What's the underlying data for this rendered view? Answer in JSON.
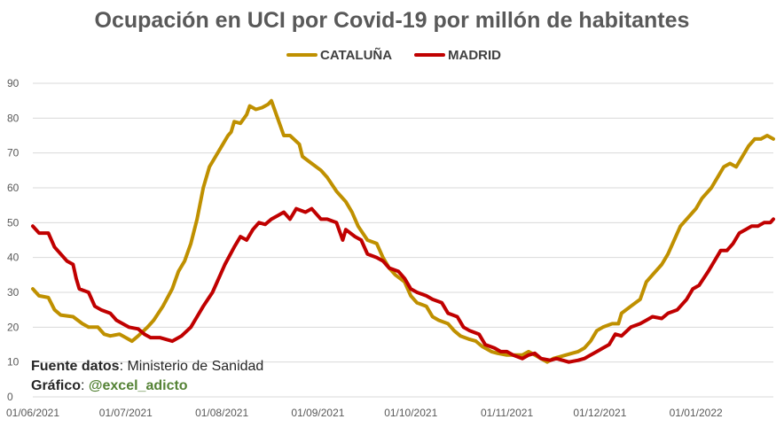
{
  "chart_data": {
    "type": "line",
    "title": "Ocupación en UCI por Covid-19 por millón de habitantes",
    "xlabel": "",
    "ylabel": "",
    "ylim": [
      0,
      90
    ],
    "yticks": [
      0,
      10,
      20,
      30,
      40,
      50,
      60,
      70,
      80,
      90
    ],
    "xlim": [
      "2021-06-01",
      "2022-01-18"
    ],
    "xticks": [
      "2021-06-01",
      "2021-07-01",
      "2021-08-01",
      "2021-09-01",
      "2021-10-01",
      "2021-11-01",
      "2021-12-01",
      "2022-01-01"
    ],
    "xtick_labels": [
      "01/06/2021",
      "01/07/2021",
      "01/08/2021",
      "01/09/2021",
      "01/10/2021",
      "01/11/2021",
      "01/12/2021",
      "01/01/2022"
    ],
    "grid": true,
    "legend_position": "top-center",
    "series": [
      {
        "name": "CATALUÑA",
        "color": "#bf9000",
        "points": [
          [
            "2021-06-01",
            31
          ],
          [
            "2021-06-03",
            29
          ],
          [
            "2021-06-06",
            28.5
          ],
          [
            "2021-06-08",
            25
          ],
          [
            "2021-06-10",
            23.5
          ],
          [
            "2021-06-14",
            23
          ],
          [
            "2021-06-17",
            21
          ],
          [
            "2021-06-19",
            20
          ],
          [
            "2021-06-22",
            20
          ],
          [
            "2021-06-24",
            18
          ],
          [
            "2021-06-26",
            17.5
          ],
          [
            "2021-06-29",
            18
          ],
          [
            "2021-07-01",
            17
          ],
          [
            "2021-07-03",
            16
          ],
          [
            "2021-07-05",
            17.5
          ],
          [
            "2021-07-08",
            20
          ],
          [
            "2021-07-10",
            22
          ],
          [
            "2021-07-13",
            26
          ],
          [
            "2021-07-16",
            31
          ],
          [
            "2021-07-18",
            36
          ],
          [
            "2021-07-20",
            39
          ],
          [
            "2021-07-22",
            44
          ],
          [
            "2021-07-24",
            51
          ],
          [
            "2021-07-26",
            60
          ],
          [
            "2021-07-28",
            66
          ],
          [
            "2021-07-30",
            69
          ],
          [
            "2021-08-01",
            72
          ],
          [
            "2021-08-03",
            75
          ],
          [
            "2021-08-04",
            76
          ],
          [
            "2021-08-05",
            79
          ],
          [
            "2021-08-07",
            78.5
          ],
          [
            "2021-08-09",
            81
          ],
          [
            "2021-08-10",
            83.5
          ],
          [
            "2021-08-12",
            82.5
          ],
          [
            "2021-08-14",
            83
          ],
          [
            "2021-08-16",
            84
          ],
          [
            "2021-08-17",
            85
          ],
          [
            "2021-08-19",
            80
          ],
          [
            "2021-08-21",
            75
          ],
          [
            "2021-08-23",
            75
          ],
          [
            "2021-08-26",
            72.5
          ],
          [
            "2021-08-27",
            69
          ],
          [
            "2021-08-30",
            67
          ],
          [
            "2021-09-02",
            65
          ],
          [
            "2021-09-04",
            63
          ],
          [
            "2021-09-07",
            59
          ],
          [
            "2021-09-10",
            56
          ],
          [
            "2021-09-12",
            53
          ],
          [
            "2021-09-14",
            49
          ],
          [
            "2021-09-17",
            45
          ],
          [
            "2021-09-20",
            44
          ],
          [
            "2021-09-22",
            40
          ],
          [
            "2021-09-24",
            37
          ],
          [
            "2021-09-26",
            35
          ],
          [
            "2021-09-29",
            33
          ],
          [
            "2021-10-01",
            29
          ],
          [
            "2021-10-03",
            27
          ],
          [
            "2021-10-06",
            26
          ],
          [
            "2021-10-08",
            23
          ],
          [
            "2021-10-10",
            22
          ],
          [
            "2021-10-13",
            21
          ],
          [
            "2021-10-15",
            19
          ],
          [
            "2021-10-17",
            17.5
          ],
          [
            "2021-10-20",
            16.5
          ],
          [
            "2021-10-22",
            16
          ],
          [
            "2021-10-24",
            14.5
          ],
          [
            "2021-10-27",
            13
          ],
          [
            "2021-10-29",
            12.5
          ],
          [
            "2021-11-01",
            12
          ],
          [
            "2021-11-03",
            12
          ],
          [
            "2021-11-06",
            12
          ],
          [
            "2021-11-08",
            13
          ],
          [
            "2021-11-10",
            12
          ],
          [
            "2021-11-12",
            11
          ],
          [
            "2021-11-14",
            10
          ],
          [
            "2021-11-16",
            11
          ],
          [
            "2021-11-18",
            11.5
          ],
          [
            "2021-11-20",
            12
          ],
          [
            "2021-11-22",
            12.5
          ],
          [
            "2021-11-24",
            13
          ],
          [
            "2021-11-26",
            14
          ],
          [
            "2021-11-28",
            16
          ],
          [
            "2021-11-30",
            19
          ],
          [
            "2021-12-02",
            20
          ],
          [
            "2021-12-05",
            21
          ],
          [
            "2021-12-07",
            21
          ],
          [
            "2021-12-08",
            24
          ],
          [
            "2021-12-11",
            26
          ],
          [
            "2021-12-14",
            28
          ],
          [
            "2021-12-16",
            33
          ],
          [
            "2021-12-18",
            35
          ],
          [
            "2021-12-21",
            38
          ],
          [
            "2021-12-23",
            41
          ],
          [
            "2021-12-25",
            45
          ],
          [
            "2021-12-27",
            49
          ],
          [
            "2021-12-29",
            51
          ],
          [
            "2021-12-31",
            53
          ],
          [
            "2022-01-01",
            54
          ],
          [
            "2022-01-03",
            57
          ],
          [
            "2022-01-06",
            60
          ],
          [
            "2022-01-08",
            63
          ],
          [
            "2022-01-10",
            66
          ],
          [
            "2022-01-12",
            67
          ],
          [
            "2022-01-14",
            66
          ],
          [
            "2022-01-16",
            69
          ],
          [
            "2022-01-18",
            72
          ],
          [
            "2022-01-20",
            74
          ],
          [
            "2022-01-22",
            74
          ],
          [
            "2022-01-24",
            75
          ],
          [
            "2022-01-26",
            74
          ]
        ]
      },
      {
        "name": "MADRID",
        "color": "#c00000",
        "points": [
          [
            "2021-06-01",
            49
          ],
          [
            "2021-06-03",
            47
          ],
          [
            "2021-06-06",
            47
          ],
          [
            "2021-06-08",
            43
          ],
          [
            "2021-06-10",
            41
          ],
          [
            "2021-06-12",
            39
          ],
          [
            "2021-06-14",
            38
          ],
          [
            "2021-06-15",
            34
          ],
          [
            "2021-06-16",
            31
          ],
          [
            "2021-06-19",
            30
          ],
          [
            "2021-06-21",
            26
          ],
          [
            "2021-06-23",
            25
          ],
          [
            "2021-06-26",
            24
          ],
          [
            "2021-06-28",
            22
          ],
          [
            "2021-06-30",
            21
          ],
          [
            "2021-07-02",
            20
          ],
          [
            "2021-07-05",
            19.5
          ],
          [
            "2021-07-07",
            18
          ],
          [
            "2021-07-09",
            17
          ],
          [
            "2021-07-12",
            17
          ],
          [
            "2021-07-14",
            16.5
          ],
          [
            "2021-07-16",
            16
          ],
          [
            "2021-07-19",
            17.5
          ],
          [
            "2021-07-22",
            20
          ],
          [
            "2021-07-24",
            23
          ],
          [
            "2021-07-26",
            26
          ],
          [
            "2021-07-29",
            30
          ],
          [
            "2021-07-31",
            34
          ],
          [
            "2021-08-02",
            38
          ],
          [
            "2021-08-05",
            43
          ],
          [
            "2021-08-07",
            46
          ],
          [
            "2021-08-09",
            45
          ],
          [
            "2021-08-11",
            48
          ],
          [
            "2021-08-13",
            50
          ],
          [
            "2021-08-15",
            49.5
          ],
          [
            "2021-08-17",
            51
          ],
          [
            "2021-08-19",
            52
          ],
          [
            "2021-08-21",
            53
          ],
          [
            "2021-08-23",
            51
          ],
          [
            "2021-08-25",
            54
          ],
          [
            "2021-08-28",
            53
          ],
          [
            "2021-08-30",
            54
          ],
          [
            "2021-09-02",
            51
          ],
          [
            "2021-09-04",
            51
          ],
          [
            "2021-09-07",
            50
          ],
          [
            "2021-09-09",
            45
          ],
          [
            "2021-09-10",
            48
          ],
          [
            "2021-09-13",
            46
          ],
          [
            "2021-09-15",
            45
          ],
          [
            "2021-09-17",
            41
          ],
          [
            "2021-09-20",
            40
          ],
          [
            "2021-09-22",
            39
          ],
          [
            "2021-09-24",
            37
          ],
          [
            "2021-09-27",
            36
          ],
          [
            "2021-09-29",
            34
          ],
          [
            "2021-10-01",
            31
          ],
          [
            "2021-10-03",
            30
          ],
          [
            "2021-10-06",
            29
          ],
          [
            "2021-10-08",
            28
          ],
          [
            "2021-10-11",
            27
          ],
          [
            "2021-10-13",
            24
          ],
          [
            "2021-10-16",
            23
          ],
          [
            "2021-10-18",
            20
          ],
          [
            "2021-10-20",
            19
          ],
          [
            "2021-10-23",
            18
          ],
          [
            "2021-10-25",
            15
          ],
          [
            "2021-10-28",
            14
          ],
          [
            "2021-10-30",
            13
          ],
          [
            "2021-11-01",
            13
          ],
          [
            "2021-11-03",
            12
          ],
          [
            "2021-11-06",
            11
          ],
          [
            "2021-11-08",
            12
          ],
          [
            "2021-11-10",
            12.5
          ],
          [
            "2021-11-12",
            11
          ],
          [
            "2021-11-15",
            10.5
          ],
          [
            "2021-11-17",
            11
          ],
          [
            "2021-11-19",
            10.5
          ],
          [
            "2021-11-21",
            10
          ],
          [
            "2021-11-24",
            10.5
          ],
          [
            "2021-11-26",
            11
          ],
          [
            "2021-11-28",
            12
          ],
          [
            "2021-11-30",
            13
          ],
          [
            "2021-12-02",
            14
          ],
          [
            "2021-12-04",
            15
          ],
          [
            "2021-12-06",
            18
          ],
          [
            "2021-12-08",
            17.5
          ],
          [
            "2021-12-11",
            20
          ],
          [
            "2021-12-14",
            21
          ],
          [
            "2021-12-16",
            22
          ],
          [
            "2021-12-18",
            23
          ],
          [
            "2021-12-21",
            22.5
          ],
          [
            "2021-12-23",
            24
          ],
          [
            "2021-12-26",
            25
          ],
          [
            "2021-12-29",
            28
          ],
          [
            "2021-12-31",
            31
          ],
          [
            "2022-01-02",
            32
          ],
          [
            "2022-01-05",
            36
          ],
          [
            "2022-01-07",
            39
          ],
          [
            "2022-01-09",
            42
          ],
          [
            "2022-01-11",
            42
          ],
          [
            "2022-01-13",
            44
          ],
          [
            "2022-01-15",
            47
          ],
          [
            "2022-01-17",
            48
          ],
          [
            "2022-01-19",
            49
          ],
          [
            "2022-01-21",
            49
          ],
          [
            "2022-01-23",
            50
          ],
          [
            "2022-01-25",
            50
          ],
          [
            "2022-01-26",
            51
          ]
        ]
      }
    ]
  },
  "source": {
    "label": "Fuente datos",
    "value": "Ministerio de Sanidad"
  },
  "credit": {
    "label": "Gráfico",
    "handle": "@excel_adicto"
  }
}
